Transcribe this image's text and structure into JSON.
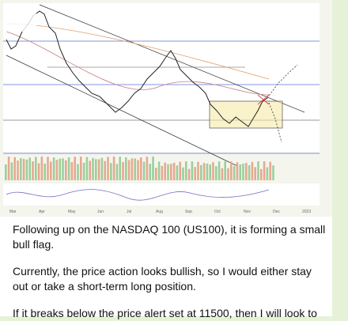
{
  "message": {
    "image": {
      "x_labels": [
        "Mar",
        "Apr",
        "May",
        "Jun",
        "Jul",
        "Aug",
        "Sep",
        "Oct",
        "Nov",
        "Dec",
        "2023"
      ]
    },
    "paragraphs": [
      "Following up on the NASDAQ 100 (US100), it is forming a small bull flag.",
      "Currently, the price action looks bullish, so I would either stay out or take a short-term long position.",
      "If it breaks below the price alert set at 11500, then I will look to"
    ]
  }
}
